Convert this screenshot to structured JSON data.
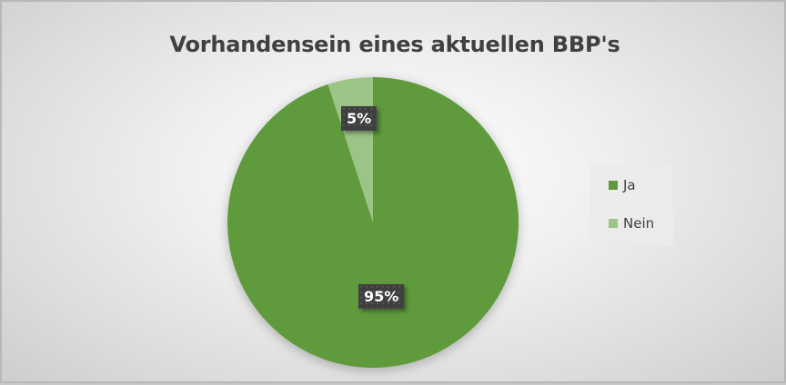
{
  "chart_data": {
    "type": "pie",
    "title": "Vorhandensein eines aktuellen BBP's",
    "categories": [
      "Ja",
      "Nein"
    ],
    "values": [
      95,
      5
    ],
    "labels": [
      "95%",
      "5%"
    ],
    "colors": [
      "#5f9a3c",
      "#9cc486"
    ],
    "legend_position": "right",
    "start_angle_deg": 0,
    "direction": "clockwise"
  },
  "legend": {
    "items": [
      {
        "label": "Ja",
        "color": "#5f9a3c"
      },
      {
        "label": "Nein",
        "color": "#9cc486"
      }
    ]
  }
}
